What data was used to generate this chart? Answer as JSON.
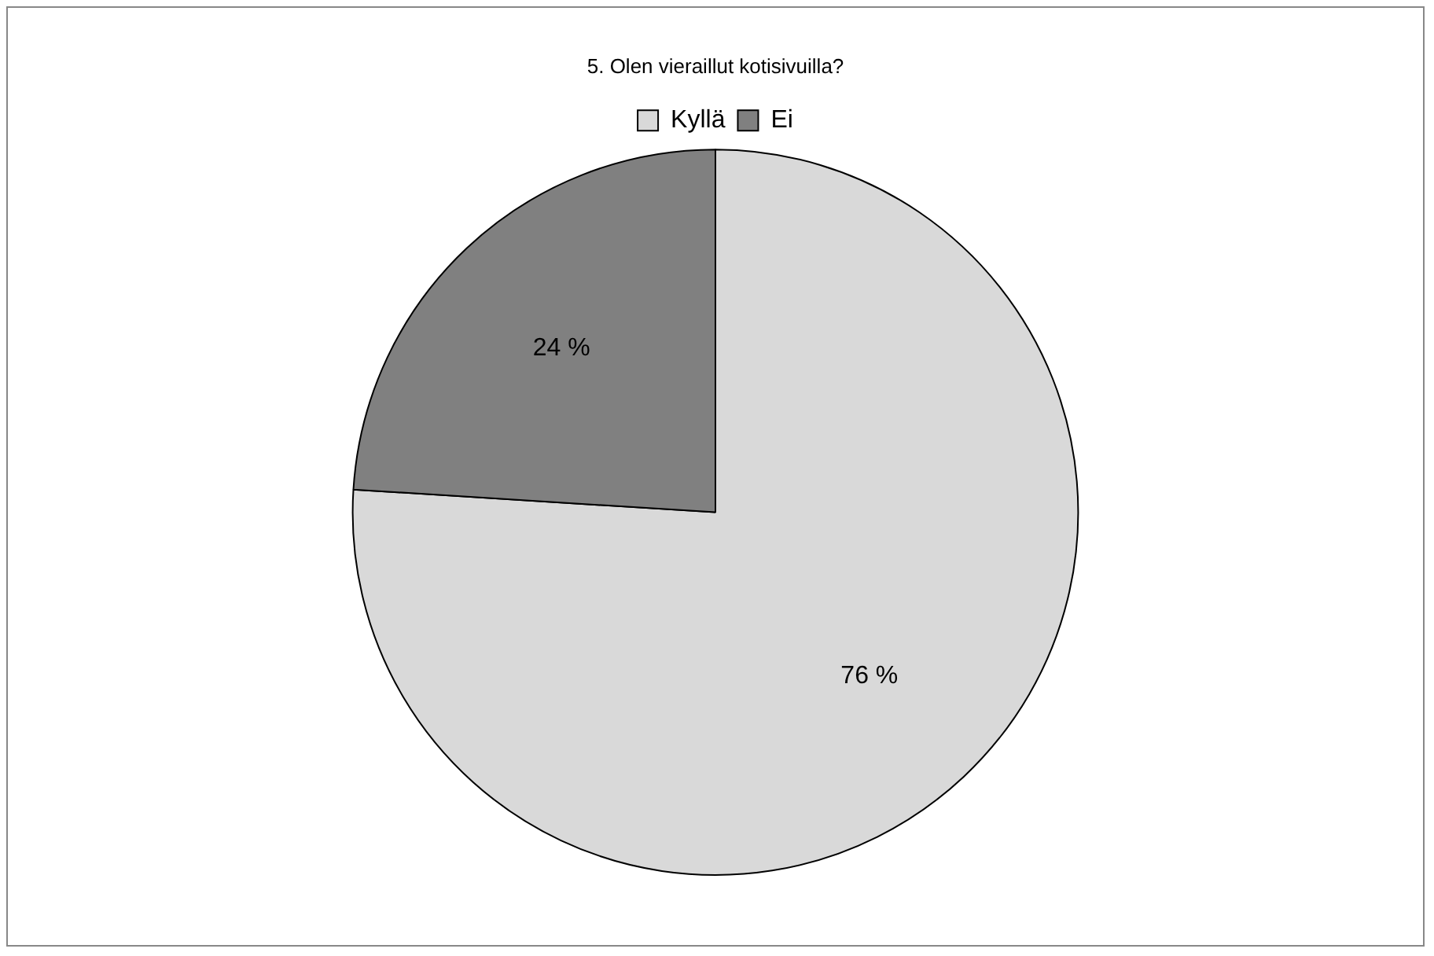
{
  "chart_data": {
    "type": "pie",
    "title": "5. Olen vieraillut kotisivuilla?",
    "categories": [
      "Kyllä",
      "Ei"
    ],
    "values": [
      76,
      24
    ],
    "colors": [
      "#d9d9d9",
      "#808080"
    ],
    "value_labels": [
      "76 %",
      "24 %"
    ],
    "legend": "top"
  }
}
